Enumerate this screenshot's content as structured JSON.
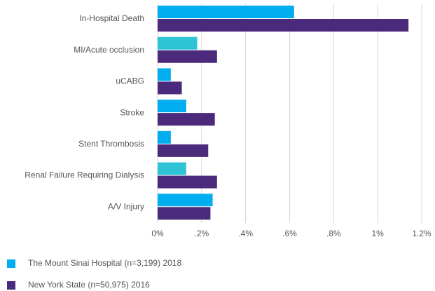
{
  "chart_data": {
    "type": "hbar",
    "categories": [
      "In-Hospital Death",
      "MI/Acute occlusion",
      "uCABG",
      "Stroke",
      "Stent Thrombosis",
      "Renal Failure Requiring Dialysis",
      "A/V Injury"
    ],
    "series": [
      {
        "name": "The Mount Sinai Hospital (n=3,199) 2018",
        "color": "#00aeef",
        "colors": [
          "#00aeef",
          "#2ec4d6",
          "#00aeef",
          "#00aeef",
          "#00aeef",
          "#2ec4d6",
          "#00aeef"
        ],
        "values": [
          0.62,
          0.18,
          0.06,
          0.13,
          0.06,
          0.13,
          0.25
        ]
      },
      {
        "name": "New York State (n=50,975) 2016",
        "color": "#4b2a7b",
        "values": [
          1.14,
          0.27,
          0.11,
          0.26,
          0.23,
          0.27,
          0.24
        ]
      }
    ],
    "xlim": [
      0,
      1.2
    ],
    "xticks": [
      {
        "value": 0,
        "label": "0%"
      },
      {
        "value": 0.2,
        "label": ".2%"
      },
      {
        "value": 0.4,
        "label": ".4%"
      },
      {
        "value": 0.6,
        "label": ".6%"
      },
      {
        "value": 0.8,
        "label": ".8%"
      },
      {
        "value": 1,
        "label": "1%"
      },
      {
        "value": 1.2,
        "label": "1.2%"
      }
    ],
    "grid": true,
    "legend": "bottom-left"
  }
}
